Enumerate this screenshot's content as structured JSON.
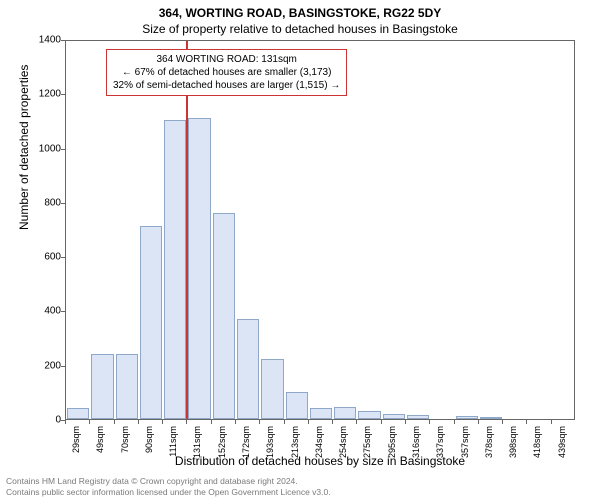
{
  "chart": {
    "type": "histogram",
    "title_line1": "364, WORTING ROAD, BASINGSTOKE, RG22 5DY",
    "title_line2": "Size of property relative to detached houses in Basingstoke",
    "title_fontsize": 12,
    "ylabel": "Number of detached properties",
    "xlabel": "Distribution of detached houses by size in Basingstoke",
    "label_fontsize": 12,
    "background_color": "#ffffff",
    "axis_color": "#666666",
    "bar_fill": "#dbe5f5",
    "bar_border": "#8fa8c8",
    "marker_line_color": "#cc3333",
    "marker_value_sqm": 131,
    "ylim": [
      0,
      1400
    ],
    "ytick_step": 200,
    "yticks": [
      0,
      200,
      400,
      600,
      800,
      1000,
      1200,
      1400
    ],
    "xticks": [
      "29sqm",
      "49sqm",
      "70sqm",
      "90sqm",
      "111sqm",
      "131sqm",
      "152sqm",
      "172sqm",
      "193sqm",
      "213sqm",
      "234sqm",
      "254sqm",
      "275sqm",
      "295sqm",
      "316sqm",
      "337sqm",
      "357sqm",
      "378sqm",
      "398sqm",
      "418sqm",
      "439sqm"
    ],
    "bars": [
      40,
      240,
      240,
      710,
      1100,
      1110,
      760,
      370,
      220,
      100,
      40,
      45,
      30,
      20,
      15,
      0,
      10,
      8,
      0,
      0,
      0
    ],
    "info_box": {
      "line1": "364 WORTING ROAD: 131sqm",
      "line2": "← 67% of detached houses are smaller (3,173)",
      "line3": "32% of semi-detached houses are larger (1,515) →",
      "border_color": "#cc3333",
      "fontsize": 10
    }
  },
  "footer": {
    "line1": "Contains HM Land Registry data © Crown copyright and database right 2024.",
    "line2": "Contains public sector information licensed under the Open Government Licence v3.0.",
    "color": "#7a7a7a",
    "fontsize": 8.5
  }
}
